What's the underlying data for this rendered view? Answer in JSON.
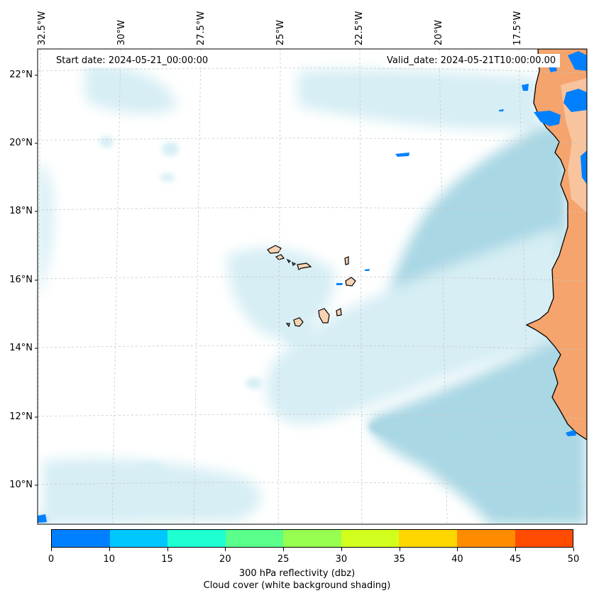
{
  "map": {
    "start_date_text": "Start date: 2024-05-21_00:00:00",
    "valid_date_text": "Valid_date: 2024-05-21T10:00:00.00",
    "longitude_labels": [
      "32.5°W",
      "30°W",
      "27.5°W",
      "25°W",
      "22.5°W",
      "20°W",
      "17.5°W"
    ],
    "latitude_labels": [
      "22°N",
      "20°N",
      "18°N",
      "16°N",
      "14°N",
      "12°N",
      "10°N"
    ],
    "colors": {
      "land": "#f4a46c",
      "land_light": "#f9d2b4",
      "cloud": "#a9d7e4",
      "cloud_light": "#d6eef4",
      "gridline": "#c8c8c8",
      "coast": "#000000"
    }
  },
  "colorbar": {
    "title": "300 hPa reflectivity (dbz)",
    "subtitle": "Cloud cover (white background shading)",
    "ticks": [
      "0",
      "10",
      "15",
      "20",
      "25",
      "30",
      "35",
      "40",
      "45",
      "50"
    ],
    "colors": [
      "#0080ff",
      "#00c8ff",
      "#1effd2",
      "#5aff8c",
      "#96ff50",
      "#d2ff1e",
      "#ffd700",
      "#ff8c00",
      "#ff4b00"
    ]
  }
}
